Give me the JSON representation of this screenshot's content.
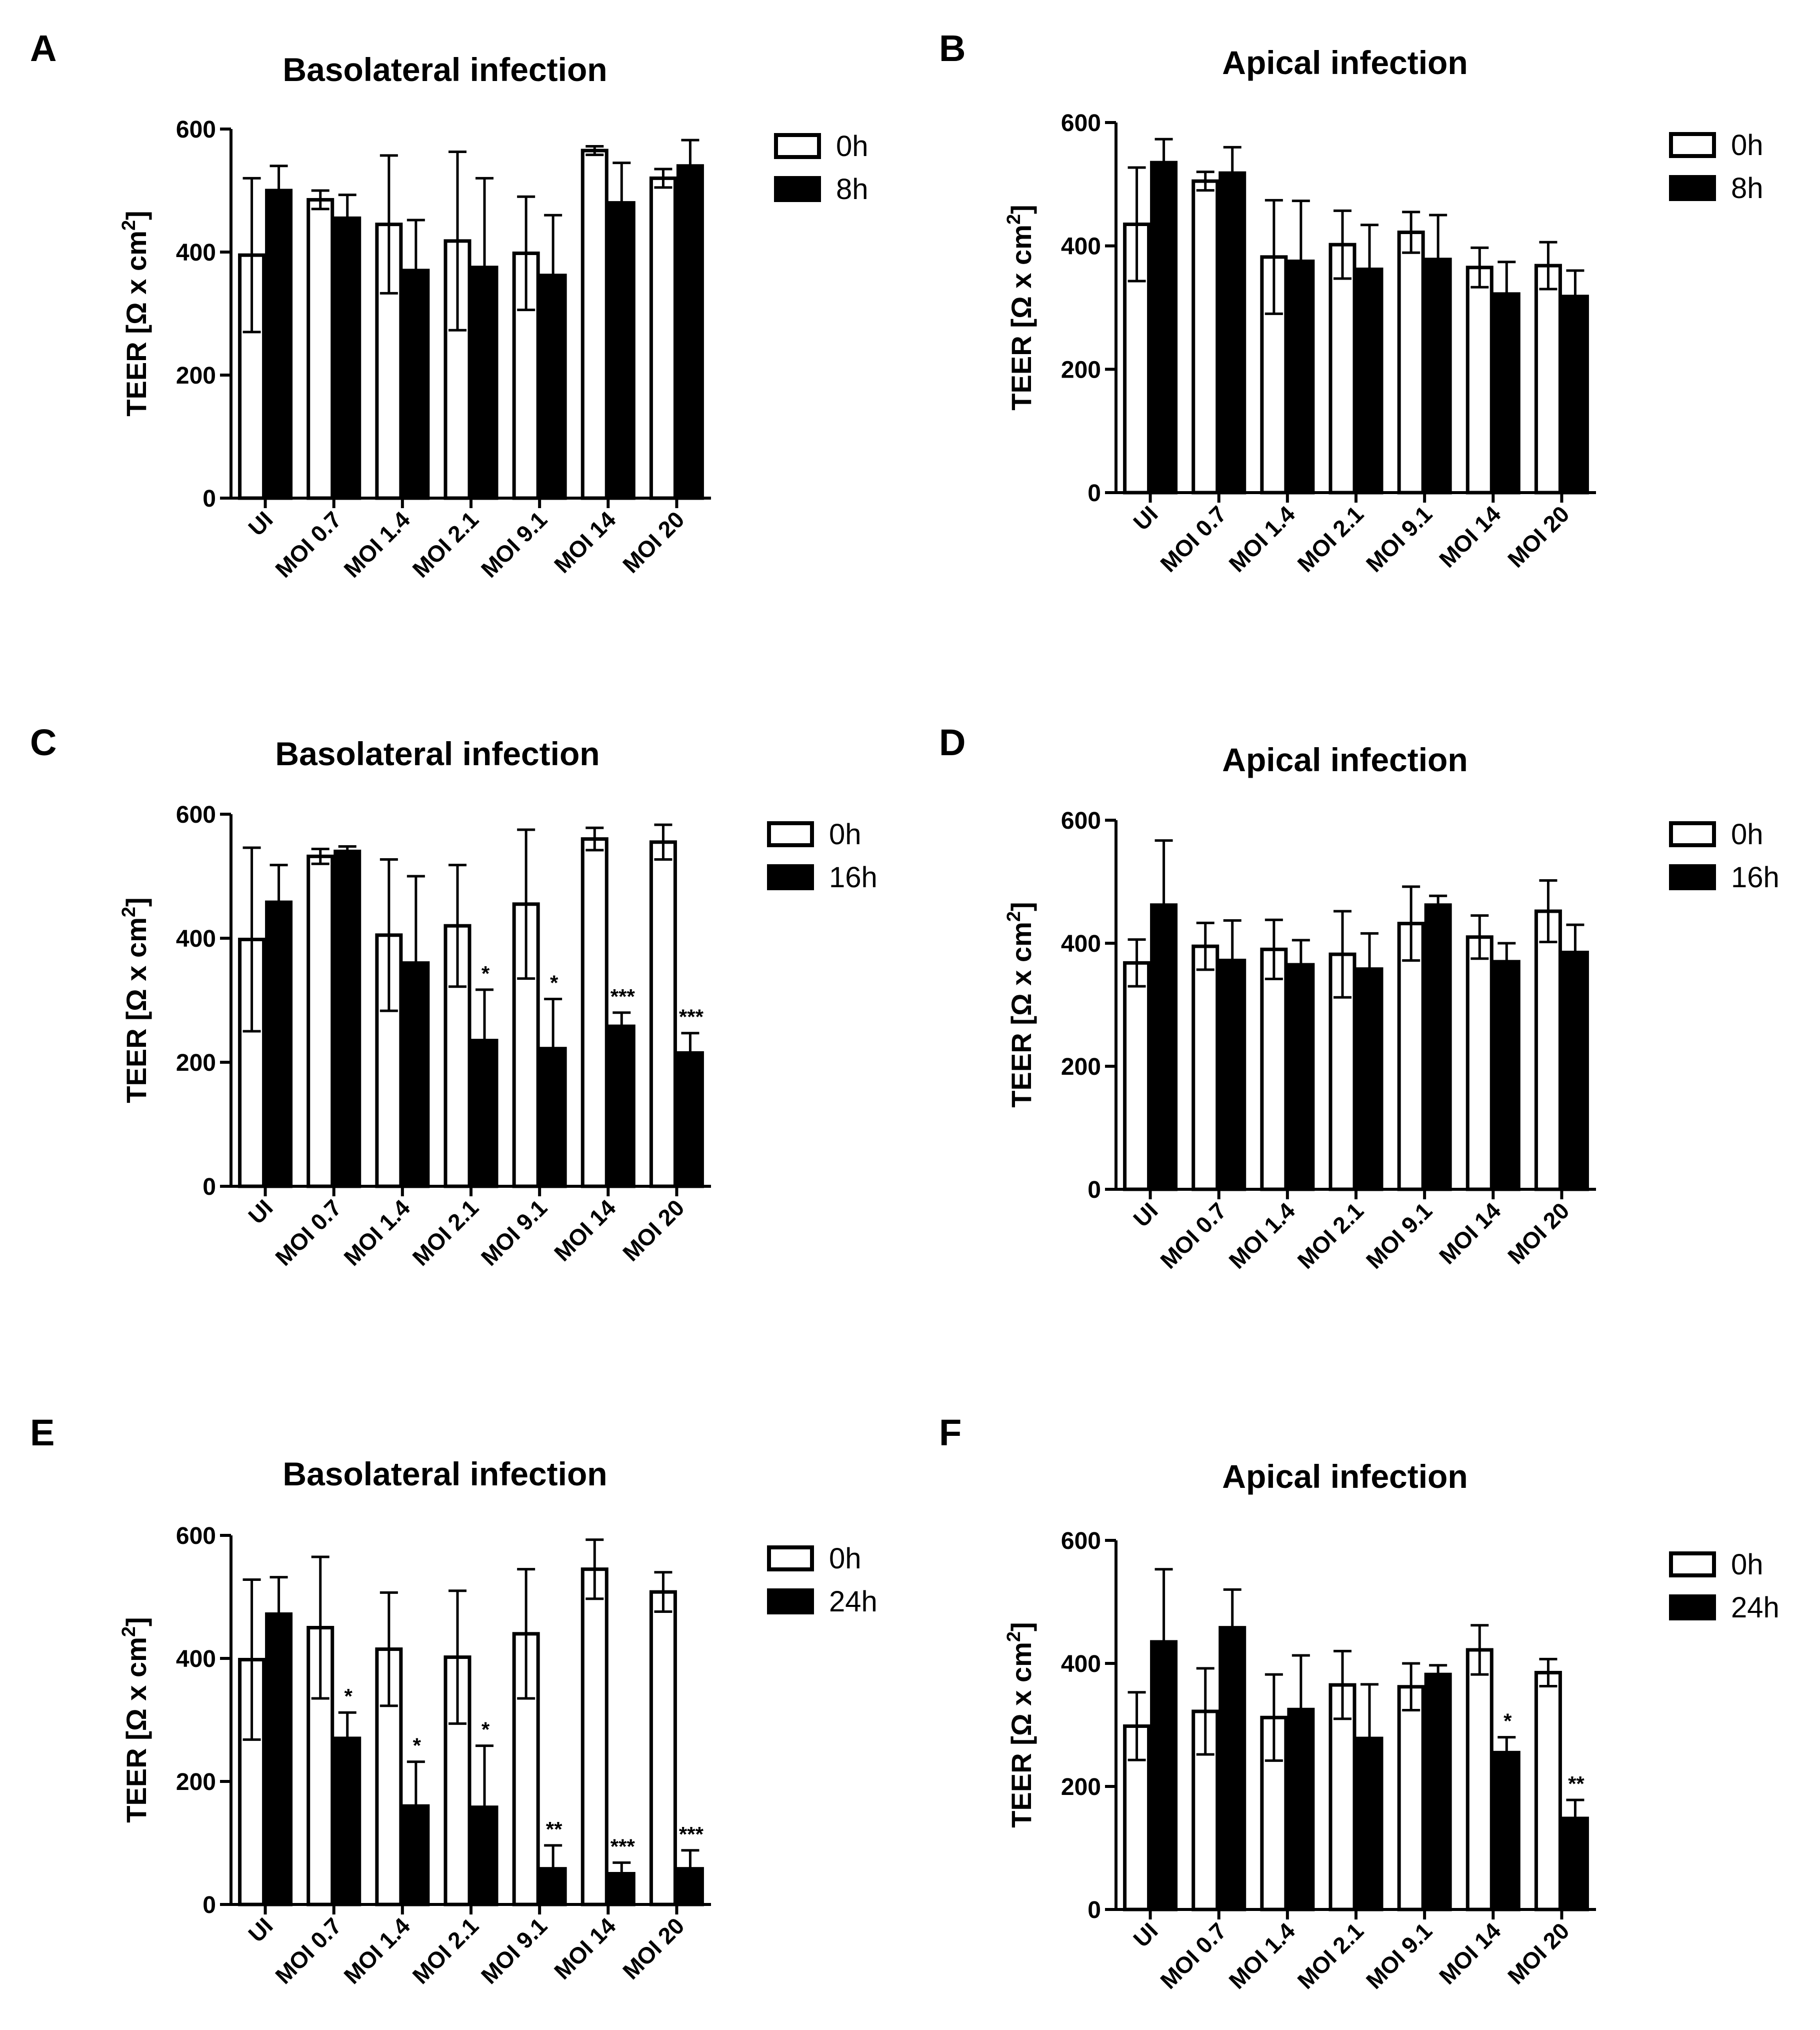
{
  "chart_data": [
    {
      "panel": "A",
      "title": "Basolateral infection",
      "type": "bar",
      "ylabel_main": "TEER [Ω x cm",
      "ylabel_sup": "2",
      "ylabel_end": "]",
      "yticks": [
        0,
        200,
        400,
        600
      ],
      "ylim": [
        0,
        600
      ],
      "categories": [
        "UI",
        "MOI 0.7",
        "MOI 1.4",
        "MOI 2.1",
        "MOI 9.1",
        "MOI 14",
        "MOI 20"
      ],
      "series": [
        {
          "name": "0h",
          "fill": "white",
          "values": [
            395,
            485,
            445,
            418,
            398,
            565,
            520
          ],
          "err": [
            125,
            15,
            112,
            145,
            92,
            7,
            15
          ]
        },
        {
          "name": "8h",
          "fill": "black",
          "values": [
            500,
            455,
            370,
            375,
            362,
            480,
            540
          ],
          "err": [
            40,
            38,
            82,
            145,
            98,
            65,
            42
          ]
        }
      ],
      "sig": [
        "",
        "",
        "",
        "",
        "",
        "",
        ""
      ]
    },
    {
      "panel": "B",
      "title": "Apical infection",
      "type": "bar",
      "ylabel_main": "TEER [Ω x cm",
      "ylabel_sup": "2",
      "ylabel_end": "]",
      "yticks": [
        0,
        200,
        400,
        600
      ],
      "ylim": [
        0,
        600
      ],
      "categories": [
        "UI",
        "MOI 0.7",
        "MOI 1.4",
        "MOI 2.1",
        "MOI 9.1",
        "MOI 14",
        "MOI 20"
      ],
      "series": [
        {
          "name": "0h",
          "fill": "white",
          "values": [
            435,
            505,
            382,
            402,
            422,
            365,
            368
          ],
          "err": [
            92,
            15,
            92,
            55,
            33,
            32,
            38
          ]
        },
        {
          "name": "8h",
          "fill": "black",
          "values": [
            535,
            518,
            375,
            362,
            378,
            322,
            318
          ],
          "err": [
            38,
            42,
            98,
            72,
            72,
            52,
            42
          ]
        }
      ],
      "sig": [
        "",
        "",
        "",
        "",
        "",
        "",
        ""
      ]
    },
    {
      "panel": "C",
      "title": "Basolateral infection",
      "type": "bar",
      "ylabel_main": "TEER [Ω x cm",
      "ylabel_sup": "2",
      "ylabel_end": "]",
      "yticks": [
        0,
        200,
        400,
        600
      ],
      "ylim": [
        0,
        600
      ],
      "categories": [
        "UI",
        "MOI 0.7",
        "MOI 1.4",
        "MOI 2.1",
        "MOI 9.1",
        "MOI 14",
        "MOI 20"
      ],
      "series": [
        {
          "name": "0h",
          "fill": "white",
          "values": [
            398,
            532,
            405,
            420,
            455,
            560,
            555
          ],
          "err": [
            148,
            12,
            122,
            98,
            120,
            18,
            28
          ]
        },
        {
          "name": "16h",
          "fill": "black",
          "values": [
            458,
            540,
            360,
            235,
            222,
            258,
            215
          ],
          "err": [
            60,
            8,
            140,
            82,
            80,
            22,
            32
          ]
        }
      ],
      "sig": [
        "",
        "",
        "",
        "*",
        "*",
        "***",
        "***"
      ]
    },
    {
      "panel": "D",
      "title": "Apical infection",
      "type": "bar",
      "ylabel_main": "TEER [Ω x cm",
      "ylabel_sup": "2",
      "ylabel_end": "]",
      "yticks": [
        0,
        200,
        400,
        600
      ],
      "ylim": [
        0,
        600
      ],
      "categories": [
        "UI",
        "MOI 0.7",
        "MOI 1.4",
        "MOI 2.1",
        "MOI 9.1",
        "MOI 14",
        "MOI 20"
      ],
      "series": [
        {
          "name": "0h",
          "fill": "white",
          "values": [
            368,
            395,
            390,
            382,
            432,
            410,
            452
          ],
          "err": [
            38,
            38,
            48,
            70,
            60,
            35,
            50
          ]
        },
        {
          "name": "16h",
          "fill": "black",
          "values": [
            462,
            372,
            365,
            358,
            462,
            370,
            385
          ],
          "err": [
            105,
            65,
            40,
            58,
            15,
            30,
            45
          ]
        }
      ],
      "sig": [
        "",
        "",
        "",
        "",
        "",
        "",
        ""
      ]
    },
    {
      "panel": "E",
      "title": "Basolateral infection",
      "type": "bar",
      "ylabel_main": "TEER [Ω x cm",
      "ylabel_sup": "2",
      "ylabel_end": "]",
      "yticks": [
        0,
        200,
        400,
        600
      ],
      "ylim": [
        0,
        600
      ],
      "categories": [
        "UI",
        "MOI 0.7",
        "MOI 1.4",
        "MOI 2.1",
        "MOI 9.1",
        "MOI 14",
        "MOI 20"
      ],
      "series": [
        {
          "name": "0h",
          "fill": "white",
          "values": [
            398,
            450,
            415,
            402,
            440,
            545,
            508
          ],
          "err": [
            130,
            115,
            92,
            108,
            105,
            48,
            32
          ]
        },
        {
          "name": "24h",
          "fill": "black",
          "values": [
            472,
            270,
            160,
            158,
            58,
            50,
            58
          ],
          "err": [
            60,
            42,
            72,
            100,
            38,
            18,
            30
          ]
        }
      ],
      "sig": [
        "",
        "*",
        "*",
        "*",
        "**",
        "***",
        "***"
      ]
    },
    {
      "panel": "F",
      "title": "Apical infection",
      "type": "bar",
      "ylabel_main": "TEER [Ω x cm",
      "ylabel_sup": "2",
      "ylabel_end": "]",
      "yticks": [
        0,
        200,
        400,
        600
      ],
      "ylim": [
        0,
        600
      ],
      "categories": [
        "UI",
        "MOI 0.7",
        "MOI 1.4",
        "MOI 2.1",
        "MOI 9.1",
        "MOI 14",
        "MOI 20"
      ],
      "series": [
        {
          "name": "0h",
          "fill": "white",
          "values": [
            298,
            322,
            312,
            365,
            362,
            422,
            385
          ],
          "err": [
            55,
            70,
            70,
            55,
            38,
            40,
            22
          ]
        },
        {
          "name": "24h",
          "fill": "black",
          "values": [
            435,
            458,
            325,
            278,
            382,
            255,
            148
          ],
          "err": [
            118,
            62,
            88,
            88,
            15,
            25,
            30
          ]
        }
      ],
      "sig": [
        "",
        "",
        "",
        "",
        "",
        "*",
        "**"
      ]
    }
  ]
}
